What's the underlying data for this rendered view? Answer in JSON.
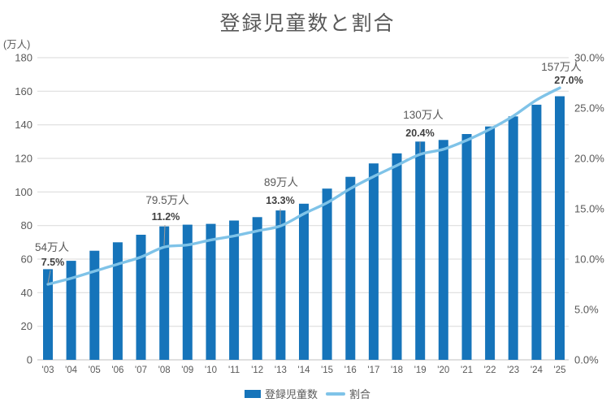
{
  "title": "登録児童数と割合",
  "left_axis": {
    "unit_label": "(万人)",
    "min": 0,
    "max": 180,
    "tick_step": 20,
    "ticks": [
      "180",
      "160",
      "140",
      "120",
      "100",
      "80",
      "60",
      "40",
      "20",
      "0"
    ]
  },
  "right_axis": {
    "min": 0,
    "max": 30,
    "tick_step": 5,
    "ticks": [
      "30.0%",
      "25.0%",
      "20.0%",
      "15.0%",
      "10.0%",
      "5.0%",
      "0.0%"
    ]
  },
  "colors": {
    "bar": "#1674ba",
    "line": "#7fc3e8",
    "title_text": "#595959",
    "axis_text": "#595959",
    "gridline": "#d9d9d9",
    "axis_line": "#bfbfbf",
    "annotation_value_text": "#595959",
    "annotation_pct_text": "#404040",
    "leader_line": "#9e9e9e"
  },
  "chart_data": {
    "type": "bar+line combo",
    "title": "登録児童数と割合",
    "categories": [
      "'03",
      "'04",
      "'05",
      "'06",
      "'07",
      "'08",
      "'09",
      "'10",
      "'11",
      "'12",
      "'13",
      "'14",
      "'15",
      "'16",
      "'17",
      "'18",
      "'19",
      "'20",
      "'21",
      "'22",
      "'23",
      "'24",
      "'25"
    ],
    "series": [
      {
        "name": "登録児童数",
        "type": "bar",
        "axis": "left",
        "unit": "万人",
        "values": [
          54,
          59,
          65,
          70,
          74.5,
          79.5,
          80.5,
          81,
          83,
          85,
          89,
          93,
          102,
          109,
          117,
          123,
          130,
          131,
          134.5,
          139,
          145,
          152,
          157
        ]
      },
      {
        "name": "割合",
        "type": "line",
        "axis": "right",
        "unit": "%",
        "values": [
          7.5,
          8.1,
          8.8,
          9.5,
          10.2,
          11.2,
          11.4,
          11.9,
          12.3,
          12.8,
          13.3,
          14.5,
          15.6,
          17.0,
          18.2,
          19.3,
          20.4,
          20.9,
          21.8,
          22.9,
          24.2,
          25.8,
          27.0
        ]
      }
    ],
    "left_ylim": [
      0,
      180
    ],
    "right_ylim": [
      0,
      30
    ],
    "grid": "horizontal, every 20万人",
    "legend_position": "bottom",
    "annotations": [
      {
        "category": "'03",
        "value_label": "54万人",
        "pct_label": "7.5%"
      },
      {
        "category": "'08",
        "value_label": "79.5万人",
        "pct_label": "11.2%"
      },
      {
        "category": "'13",
        "value_label": "89万人",
        "pct_label": "13.3%"
      },
      {
        "category": "'19",
        "value_label": "130万人",
        "pct_label": "20.4%"
      },
      {
        "category": "'25",
        "value_label": "157万人",
        "pct_label": "27.0%"
      }
    ]
  }
}
